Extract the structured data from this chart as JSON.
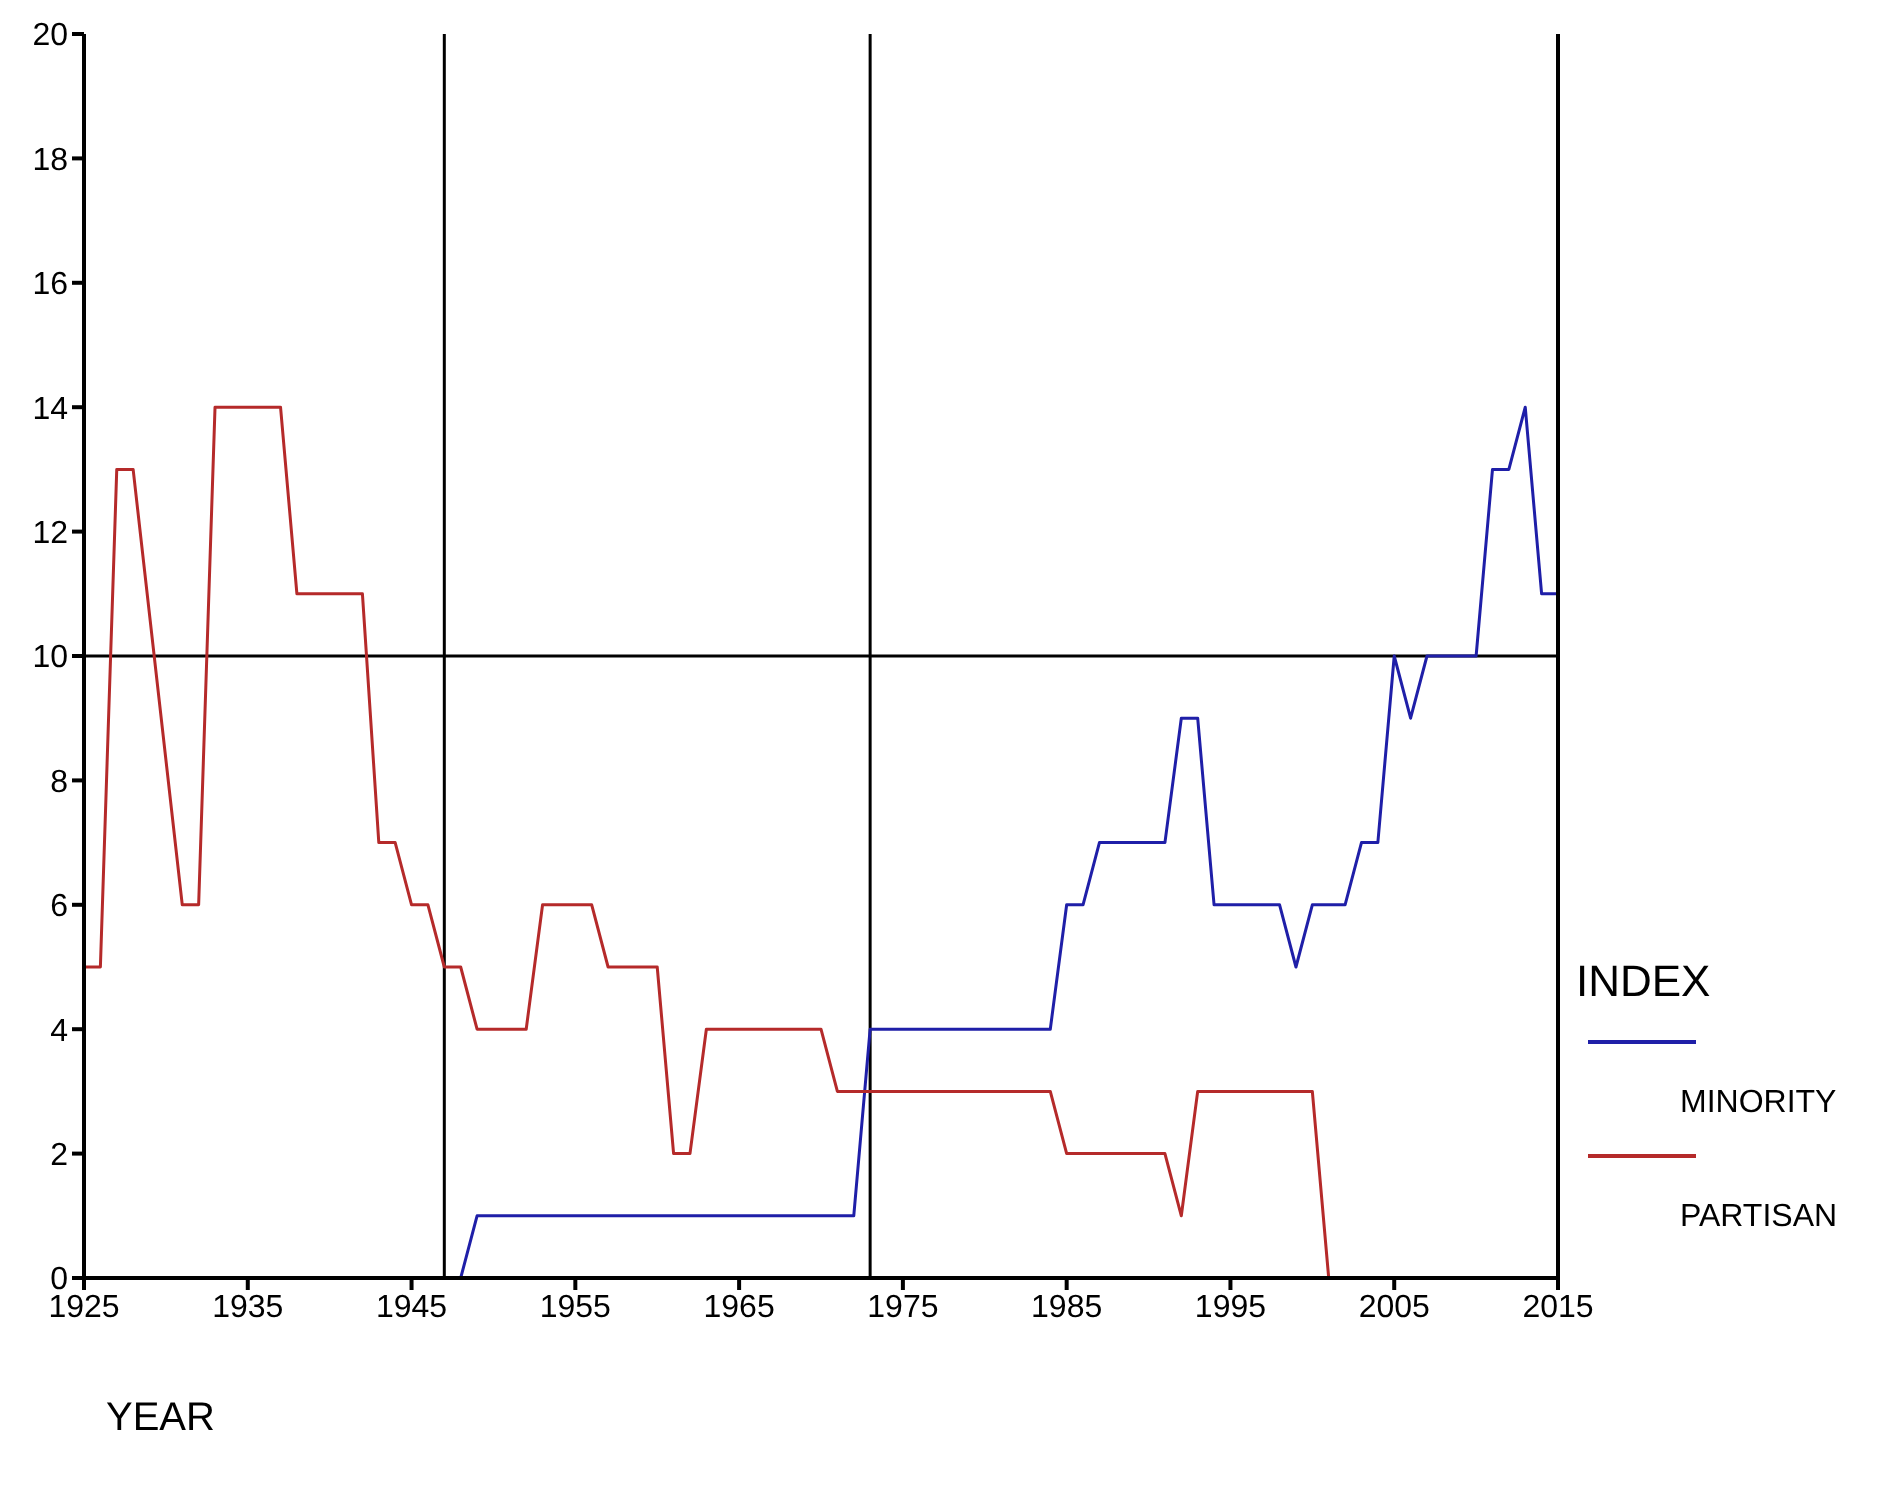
{
  "chart_data": {
    "type": "line",
    "xlabel": "YEAR",
    "legend_title": "INDEX",
    "legend": "right",
    "grid": false,
    "marker": "none",
    "line_style": "solid",
    "xlim": [
      1925,
      2015
    ],
    "xticks": [
      1925,
      1935,
      1945,
      1955,
      1965,
      1975,
      1985,
      1995,
      2005,
      2015
    ],
    "ylim": [
      0,
      20
    ],
    "yticks": [
      0,
      2,
      4,
      6,
      8,
      10,
      12,
      14,
      16,
      18,
      20
    ],
    "ref_lines": [
      {
        "axis": "x",
        "value": 1947,
        "color": "#000000"
      },
      {
        "axis": "x",
        "value": 1973,
        "color": "#000000"
      },
      {
        "axis": "y",
        "value": 10,
        "color": "#000000"
      }
    ],
    "series": [
      {
        "name": "MINORITY",
        "color": "#1f1fa8",
        "x": [
          1948,
          1949,
          1972,
          1973,
          1984,
          1985,
          1986,
          1987,
          1991,
          1992,
          1993,
          1994,
          1998,
          1999,
          2000,
          2002,
          2003,
          2004,
          2005,
          2006,
          2007,
          2010,
          2011,
          2012,
          2013,
          2014,
          2015
        ],
        "values": [
          0,
          1,
          1,
          4,
          4,
          6,
          6,
          7,
          7,
          9,
          9,
          6,
          6,
          5,
          6,
          6,
          7,
          7,
          10,
          9,
          10,
          10,
          13,
          13,
          14,
          11,
          11
        ]
      },
      {
        "name": "PARTISAN",
        "color": "#b52a2a",
        "x": [
          1925,
          1926,
          1927,
          1928,
          1931,
          1932,
          1933,
          1937,
          1938,
          1942,
          1943,
          1944,
          1945,
          1946,
          1947,
          1948,
          1949,
          1952,
          1953,
          1956,
          1957,
          1960,
          1961,
          1962,
          1963,
          1970,
          1971,
          1984,
          1985,
          1991,
          1992,
          1993,
          2000,
          2001
        ],
        "values": [
          5,
          5,
          13,
          13,
          6,
          6,
          14,
          14,
          11,
          11,
          7,
          7,
          6,
          6,
          5,
          5,
          4,
          4,
          6,
          6,
          5,
          5,
          2,
          2,
          4,
          4,
          3,
          3,
          2,
          2,
          1,
          3,
          3,
          0
        ]
      }
    ]
  }
}
